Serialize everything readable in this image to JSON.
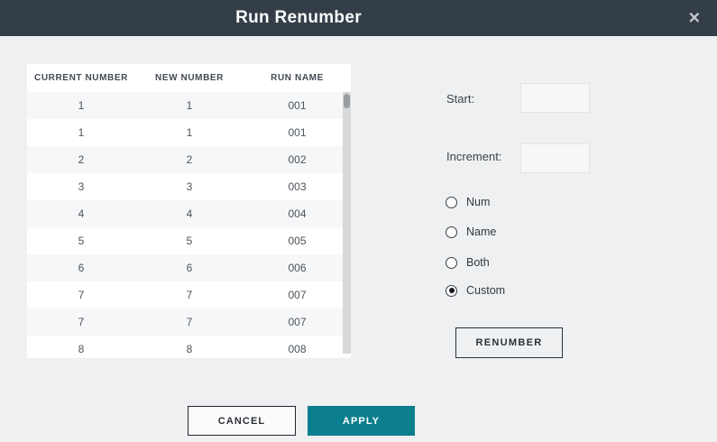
{
  "dialog": {
    "title": "Run Renumber",
    "close_icon": "✕"
  },
  "table": {
    "columns": [
      "CURRENT NUMBER",
      "NEW NUMBER",
      "RUN NAME"
    ],
    "rows": [
      {
        "current": "1",
        "new": "1",
        "name": "001"
      },
      {
        "current": "1",
        "new": "1",
        "name": "001"
      },
      {
        "current": "2",
        "new": "2",
        "name": "002"
      },
      {
        "current": "3",
        "new": "3",
        "name": "003"
      },
      {
        "current": "4",
        "new": "4",
        "name": "004"
      },
      {
        "current": "5",
        "new": "5",
        "name": "005"
      },
      {
        "current": "6",
        "new": "6",
        "name": "006"
      },
      {
        "current": "7",
        "new": "7",
        "name": "007"
      },
      {
        "current": "7",
        "new": "7",
        "name": "007"
      },
      {
        "current": "8",
        "new": "8",
        "name": "008"
      }
    ]
  },
  "form": {
    "start_label": "Start:",
    "start_value": "",
    "increment_label": "Increment:",
    "increment_value": "",
    "radios": [
      {
        "label": "Num",
        "selected": false
      },
      {
        "label": "Name",
        "selected": false
      },
      {
        "label": "Both",
        "selected": false
      },
      {
        "label": "Custom",
        "selected": true
      }
    ],
    "renumber_label": "RENUMBER"
  },
  "footer": {
    "cancel_label": "CANCEL",
    "apply_label": "APPLY"
  },
  "colors": {
    "header_bg": "#333e48",
    "body_bg": "#eef0f1",
    "accent_teal": "#0b7f8d",
    "row_alt_bg": "#f6f7f8",
    "dark_border": "#2b3139",
    "scroll_thumb": "#9a9da0"
  }
}
